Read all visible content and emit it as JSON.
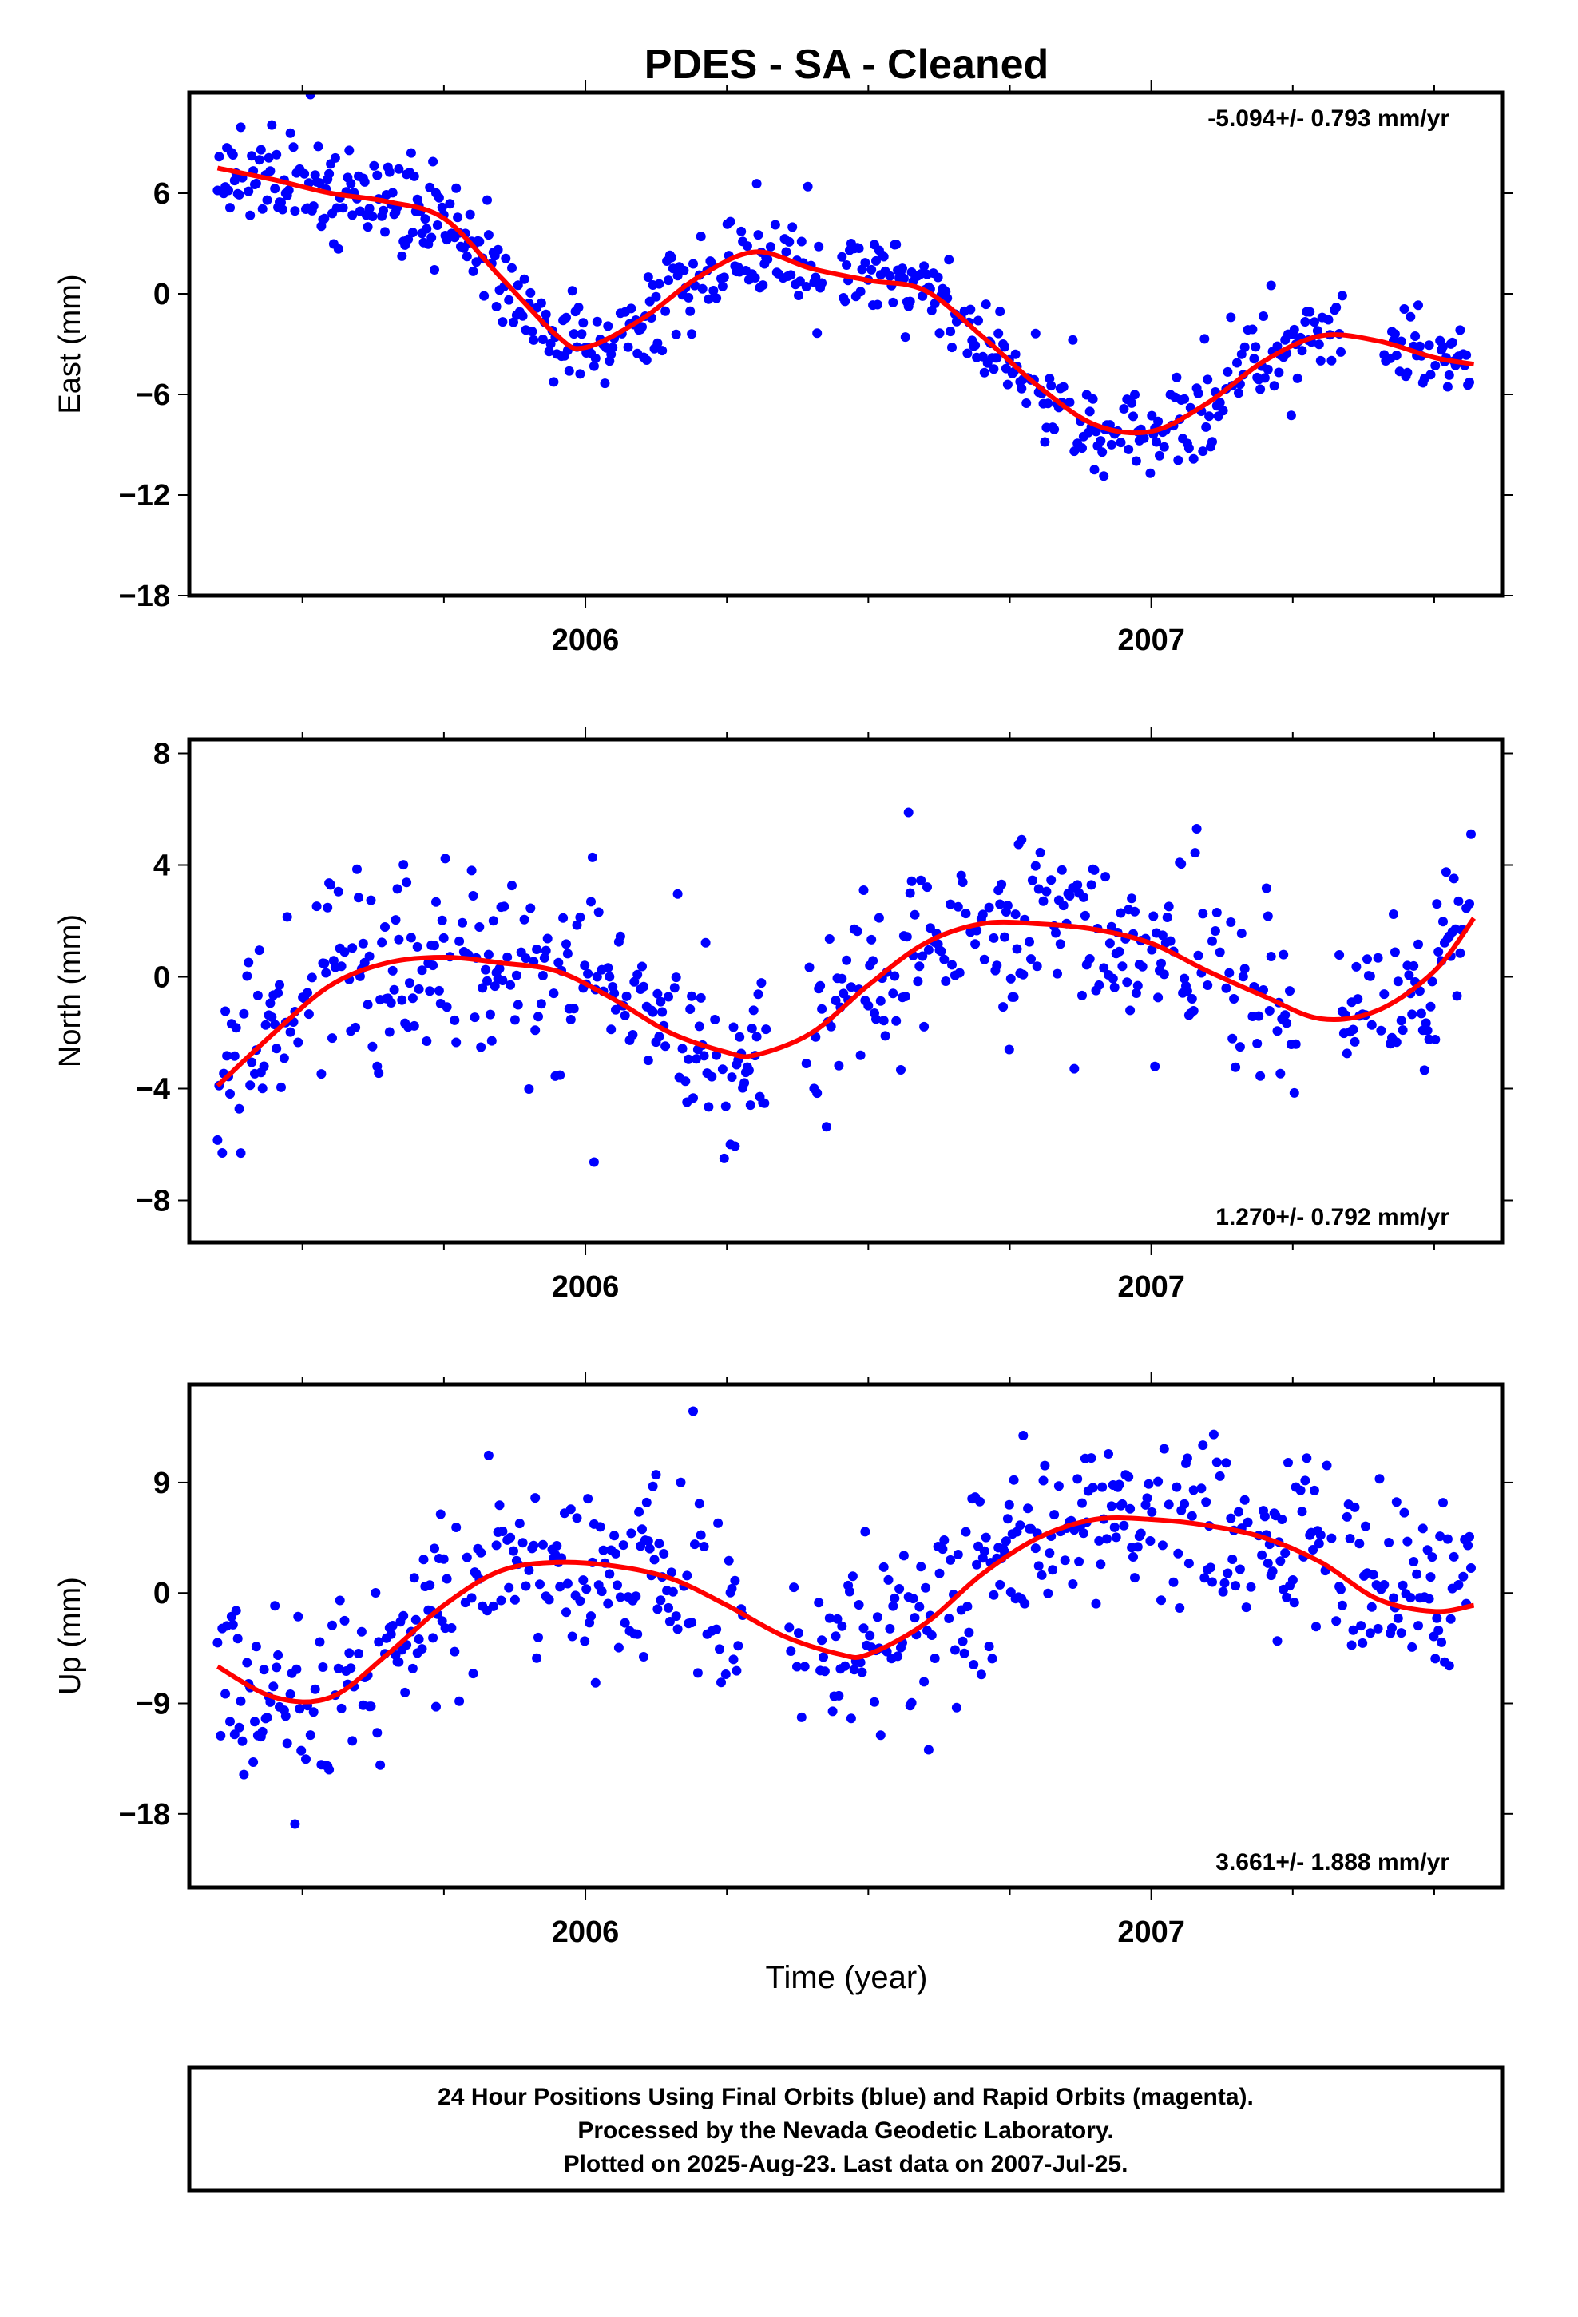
{
  "title": "PDES  - SA - Cleaned",
  "x_axis_label": "Time (year)",
  "footer": {
    "line1": "24 Hour Positions Using Final Orbits (blue) and Rapid Orbits (magenta).",
    "line2": "Processed by the Nevada Geodetic Laboratory.",
    "line3": "Plotted on 2025-Aug-23. Last data on 2007-Jul-25."
  },
  "colors": {
    "points": "#0000ff",
    "fit": "#ff0000",
    "frame": "#000000"
  },
  "chart_data": [
    {
      "type": "scatter",
      "name": "east",
      "ylabel": "East (mm)",
      "rate_label": "-5.094+/- 0.793 mm/yr",
      "rate_position": "top-right",
      "xlim": [
        2005.3,
        2007.62
      ],
      "ylim": [
        -18,
        12
      ],
      "yticks": [
        -18,
        -12,
        -6,
        0,
        6
      ],
      "xticks": [
        2006,
        2007
      ],
      "xtick_labels": [
        "2006",
        "2007"
      ],
      "fit_curve": {
        "x": [
          2005.35,
          2005.45,
          2005.55,
          2005.65,
          2005.75,
          2005.85,
          2005.95,
          2006.0,
          2006.1,
          2006.2,
          2006.3,
          2006.4,
          2006.5,
          2006.6,
          2006.7,
          2006.8,
          2006.9,
          2007.0,
          2007.1,
          2007.2,
          2007.3,
          2007.4,
          2007.5,
          2007.57
        ],
        "y": [
          7.5,
          6.8,
          6.0,
          5.5,
          4.5,
          1.0,
          -2.5,
          -3.2,
          -1.5,
          1.0,
          2.5,
          1.5,
          0.8,
          0.2,
          -2.5,
          -5.5,
          -7.8,
          -8.2,
          -6.5,
          -4.0,
          -2.5,
          -2.8,
          -3.8,
          -4.2
        ]
      },
      "generator": {
        "seed": 11,
        "noise": 1.4,
        "gaps": [
          [
            2006.42,
            2006.45
          ],
          [
            2007.34,
            2007.41
          ]
        ]
      }
    },
    {
      "type": "scatter",
      "name": "north",
      "ylabel": "North (mm)",
      "rate_label": "1.270+/- 0.792 mm/yr",
      "rate_position": "bottom-right",
      "xlim": [
        2005.3,
        2007.62
      ],
      "ylim": [
        -9.5,
        8.5
      ],
      "yticks": [
        -8,
        -4,
        0,
        4,
        8
      ],
      "xticks": [
        2006,
        2007
      ],
      "xtick_labels": [
        "2006",
        "2007"
      ],
      "fit_curve": {
        "x": [
          2005.35,
          2005.45,
          2005.55,
          2005.65,
          2005.75,
          2005.85,
          2005.95,
          2006.05,
          2006.15,
          2006.25,
          2006.3,
          2006.4,
          2006.5,
          2006.6,
          2006.7,
          2006.8,
          2006.9,
          2007.0,
          2007.1,
          2007.2,
          2007.3,
          2007.4,
          2007.5,
          2007.57
        ],
        "y": [
          -3.9,
          -2.0,
          -0.3,
          0.5,
          0.7,
          0.5,
          0.2,
          -0.8,
          -2.0,
          -2.7,
          -2.8,
          -2.0,
          -0.3,
          1.2,
          1.9,
          1.9,
          1.7,
          1.2,
          0.2,
          -0.7,
          -1.5,
          -1.2,
          0.2,
          2.1
        ]
      },
      "generator": {
        "seed": 23,
        "noise": 1.5,
        "gaps": [
          [
            2006.32,
            2006.39
          ],
          [
            2007.26,
            2007.33
          ]
        ]
      }
    },
    {
      "type": "scatter",
      "name": "up",
      "ylabel": "Up (mm)",
      "rate_label": "3.661+/- 1.888 mm/yr",
      "rate_position": "bottom-right",
      "xlim": [
        2005.3,
        2007.62
      ],
      "ylim": [
        -24,
        17
      ],
      "yticks": [
        -18,
        -9,
        0,
        9
      ],
      "xticks": [
        2006,
        2007
      ],
      "xtick_labels": [
        "2006",
        "2007"
      ],
      "fit_curve": {
        "x": [
          2005.35,
          2005.45,
          2005.55,
          2005.65,
          2005.75,
          2005.85,
          2005.95,
          2006.05,
          2006.15,
          2006.25,
          2006.35,
          2006.45,
          2006.5,
          2006.6,
          2006.7,
          2006.8,
          2006.9,
          2007.0,
          2007.1,
          2007.2,
          2007.3,
          2007.4,
          2007.5,
          2007.57
        ],
        "y": [
          -6.0,
          -8.5,
          -8.5,
          -5.0,
          -1.0,
          1.8,
          2.5,
          2.2,
          1.2,
          -1.0,
          -3.5,
          -5.0,
          -5.0,
          -2.5,
          1.5,
          4.5,
          6.0,
          6.0,
          5.5,
          4.5,
          2.5,
          -0.5,
          -1.5,
          -1.0
        ]
      },
      "generator": {
        "seed": 37,
        "noise": 3.6,
        "gaps": [
          [
            2006.28,
            2006.36
          ],
          [
            2006.39,
            2006.41
          ]
        ]
      }
    }
  ]
}
